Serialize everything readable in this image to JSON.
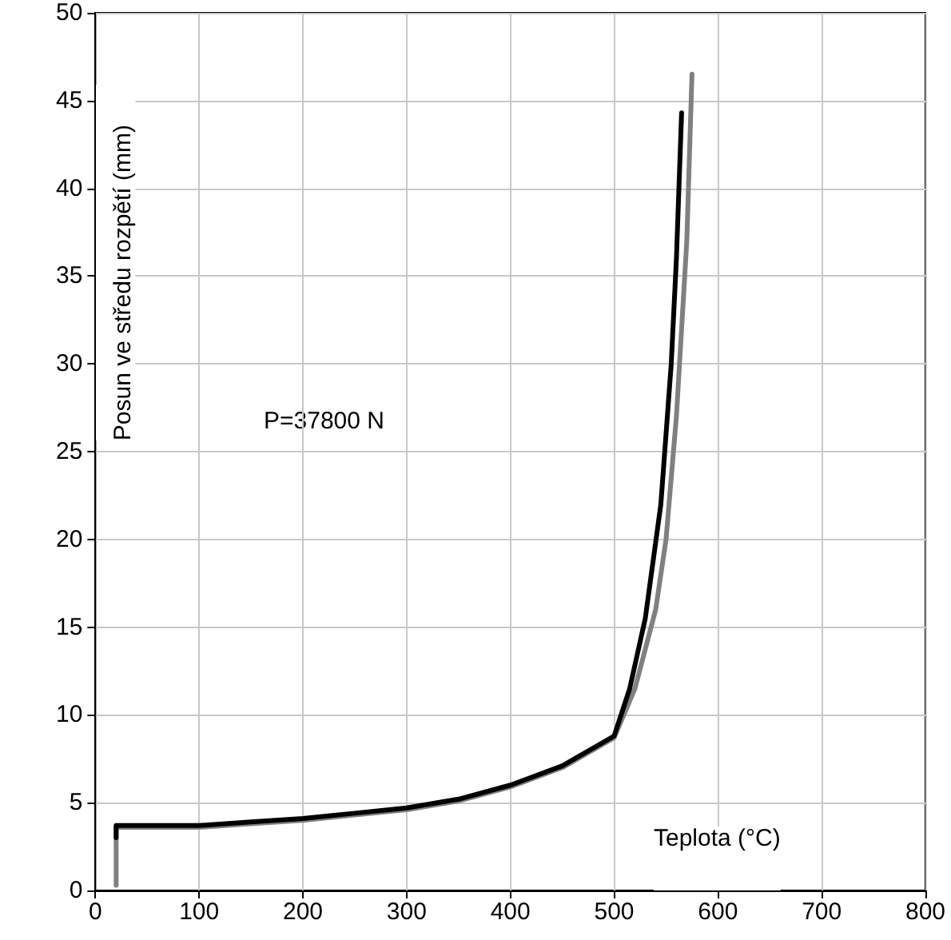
{
  "chart_data": {
    "type": "line",
    "xlabel": "Teplota (°C)",
    "ylabel": "Posun ve středu rozpětí (mm)",
    "annotations": [
      "P=37800 N"
    ],
    "series": [
      {
        "color": "#808080",
        "x": [
          20,
          20,
          50,
          100,
          150,
          200,
          250,
          300,
          350,
          400,
          450,
          500,
          520,
          540,
          550,
          560,
          570,
          575
        ],
        "values": [
          0.3,
          3.6,
          3.6,
          3.6,
          3.8,
          4.0,
          4.3,
          4.6,
          5.1,
          5.9,
          7.0,
          8.7,
          11.5,
          16,
          20,
          27,
          37,
          46.5
        ]
      },
      {
        "color": "#000000",
        "x": [
          20,
          20,
          50,
          100,
          150,
          200,
          250,
          300,
          350,
          400,
          450,
          500,
          515,
          530,
          545,
          555,
          560,
          565
        ],
        "values": [
          3.0,
          3.7,
          3.7,
          3.7,
          3.9,
          4.1,
          4.4,
          4.7,
          5.2,
          6.0,
          7.1,
          8.8,
          11.5,
          15.5,
          22,
          30,
          36,
          44.3
        ]
      }
    ],
    "xlim": [
      0,
      800
    ],
    "xticks": [
      0,
      100,
      200,
      300,
      400,
      500,
      600,
      700,
      800
    ],
    "ylim": [
      0,
      50
    ],
    "yticks": [
      0,
      5,
      10,
      15,
      20,
      25,
      30,
      35,
      40,
      45,
      50
    ],
    "grid": true,
    "marker": "none",
    "line_style": "solid"
  }
}
